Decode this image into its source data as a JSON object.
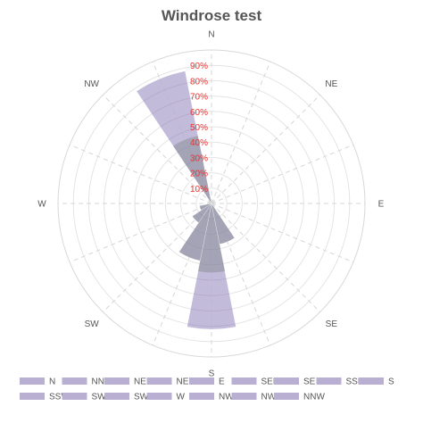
{
  "chart_data": {
    "type": "windrose",
    "title": "Windrose test",
    "directions": [
      "N",
      "NE",
      "E",
      "SE",
      "S",
      "SW",
      "W",
      "NW"
    ],
    "sectors": [
      "N",
      "NNE",
      "NE",
      "NEE",
      "E",
      "SEE",
      "SE",
      "SSE",
      "S",
      "SSW",
      "SW",
      "SWW",
      "W",
      "NWW",
      "NW",
      "NNW"
    ],
    "radial_ticks": [
      "10%",
      "20%",
      "30%",
      "40%",
      "50%",
      "60%",
      "70%",
      "80%",
      "90%"
    ],
    "radial_max": 100,
    "grid": true,
    "legend_position": "bottom",
    "series_color": "#b9afd3",
    "series": [
      {
        "name": "NNW",
        "angle": 337.5,
        "values": [
          88
        ]
      },
      {
        "name": "S",
        "angle": 180,
        "values": [
          82
        ]
      },
      {
        "name": "SSW",
        "angle": 202.5,
        "values": [
          38
        ]
      },
      {
        "name": "SSE",
        "angle": 157.5,
        "values": [
          27
        ]
      },
      {
        "name": "SW",
        "angle": 225,
        "values": [
          15
        ]
      },
      {
        "name": "SWW",
        "angle": 247.5,
        "values": [
          8
        ]
      }
    ]
  }
}
